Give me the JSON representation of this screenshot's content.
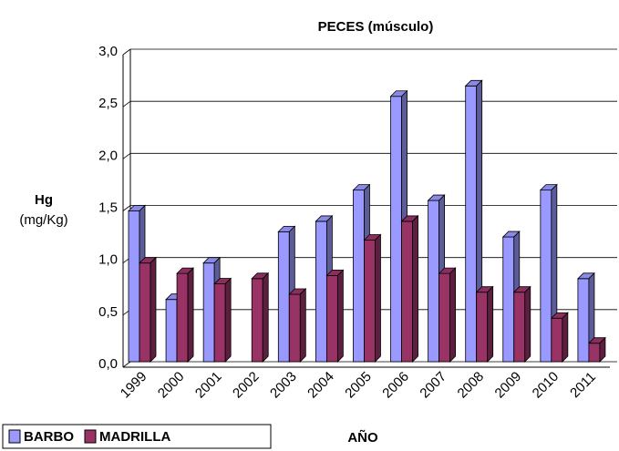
{
  "chart_data": {
    "type": "bar3d",
    "title": "PECES (músculo)",
    "y_label": "Hg",
    "y_unit": "(mg/Kg)",
    "x_label": "AÑO",
    "categories": [
      "1999",
      "2000",
      "2001",
      "2002",
      "2003",
      "2004",
      "2005",
      "2006",
      "2007",
      "2008",
      "2009",
      "2010",
      "2011"
    ],
    "series": [
      {
        "name": "BARBO",
        "color": "#9999ff",
        "values": [
          1.5,
          0.65,
          1.0,
          null,
          1.3,
          1.4,
          1.7,
          2.6,
          1.6,
          2.7,
          1.25,
          1.7,
          0.85
        ]
      },
      {
        "name": "MADRILLA",
        "color": "#993366",
        "values": [
          1.0,
          0.9,
          0.8,
          0.85,
          0.7,
          0.88,
          1.22,
          1.4,
          0.9,
          0.72,
          0.72,
          0.47,
          0.23
        ]
      }
    ],
    "ylim": [
      0,
      3
    ],
    "yticks": [
      {
        "value": 0,
        "label": "0,0"
      },
      {
        "value": 0.5,
        "label": "0,5"
      },
      {
        "value": 1,
        "label": "1,0"
      },
      {
        "value": 1.5,
        "label": "1,5"
      },
      {
        "value": 2,
        "label": "2,0"
      },
      {
        "value": 2.5,
        "label": "2,5"
      },
      {
        "value": 3,
        "label": "3,0"
      }
    ],
    "grid": true
  }
}
